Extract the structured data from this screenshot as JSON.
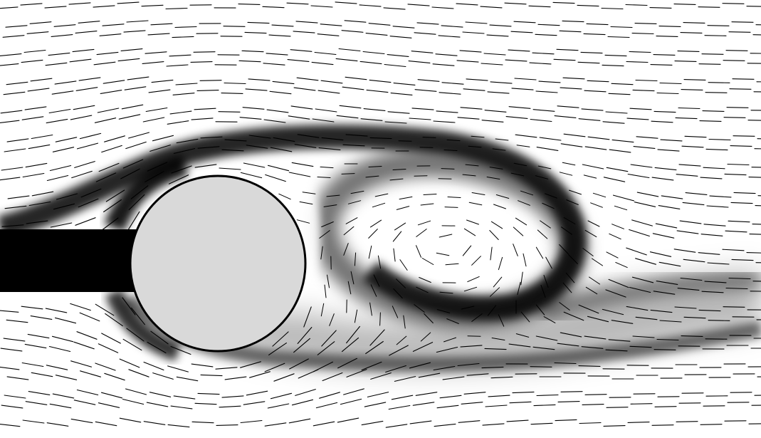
{
  "image": {
    "background_color": "#ffffff",
    "dye_color": "#000000",
    "streakline_color": "#000000",
    "cylinder": {
      "fill_color": "#d9d9d9",
      "outline_color": "#000000"
    }
  }
}
